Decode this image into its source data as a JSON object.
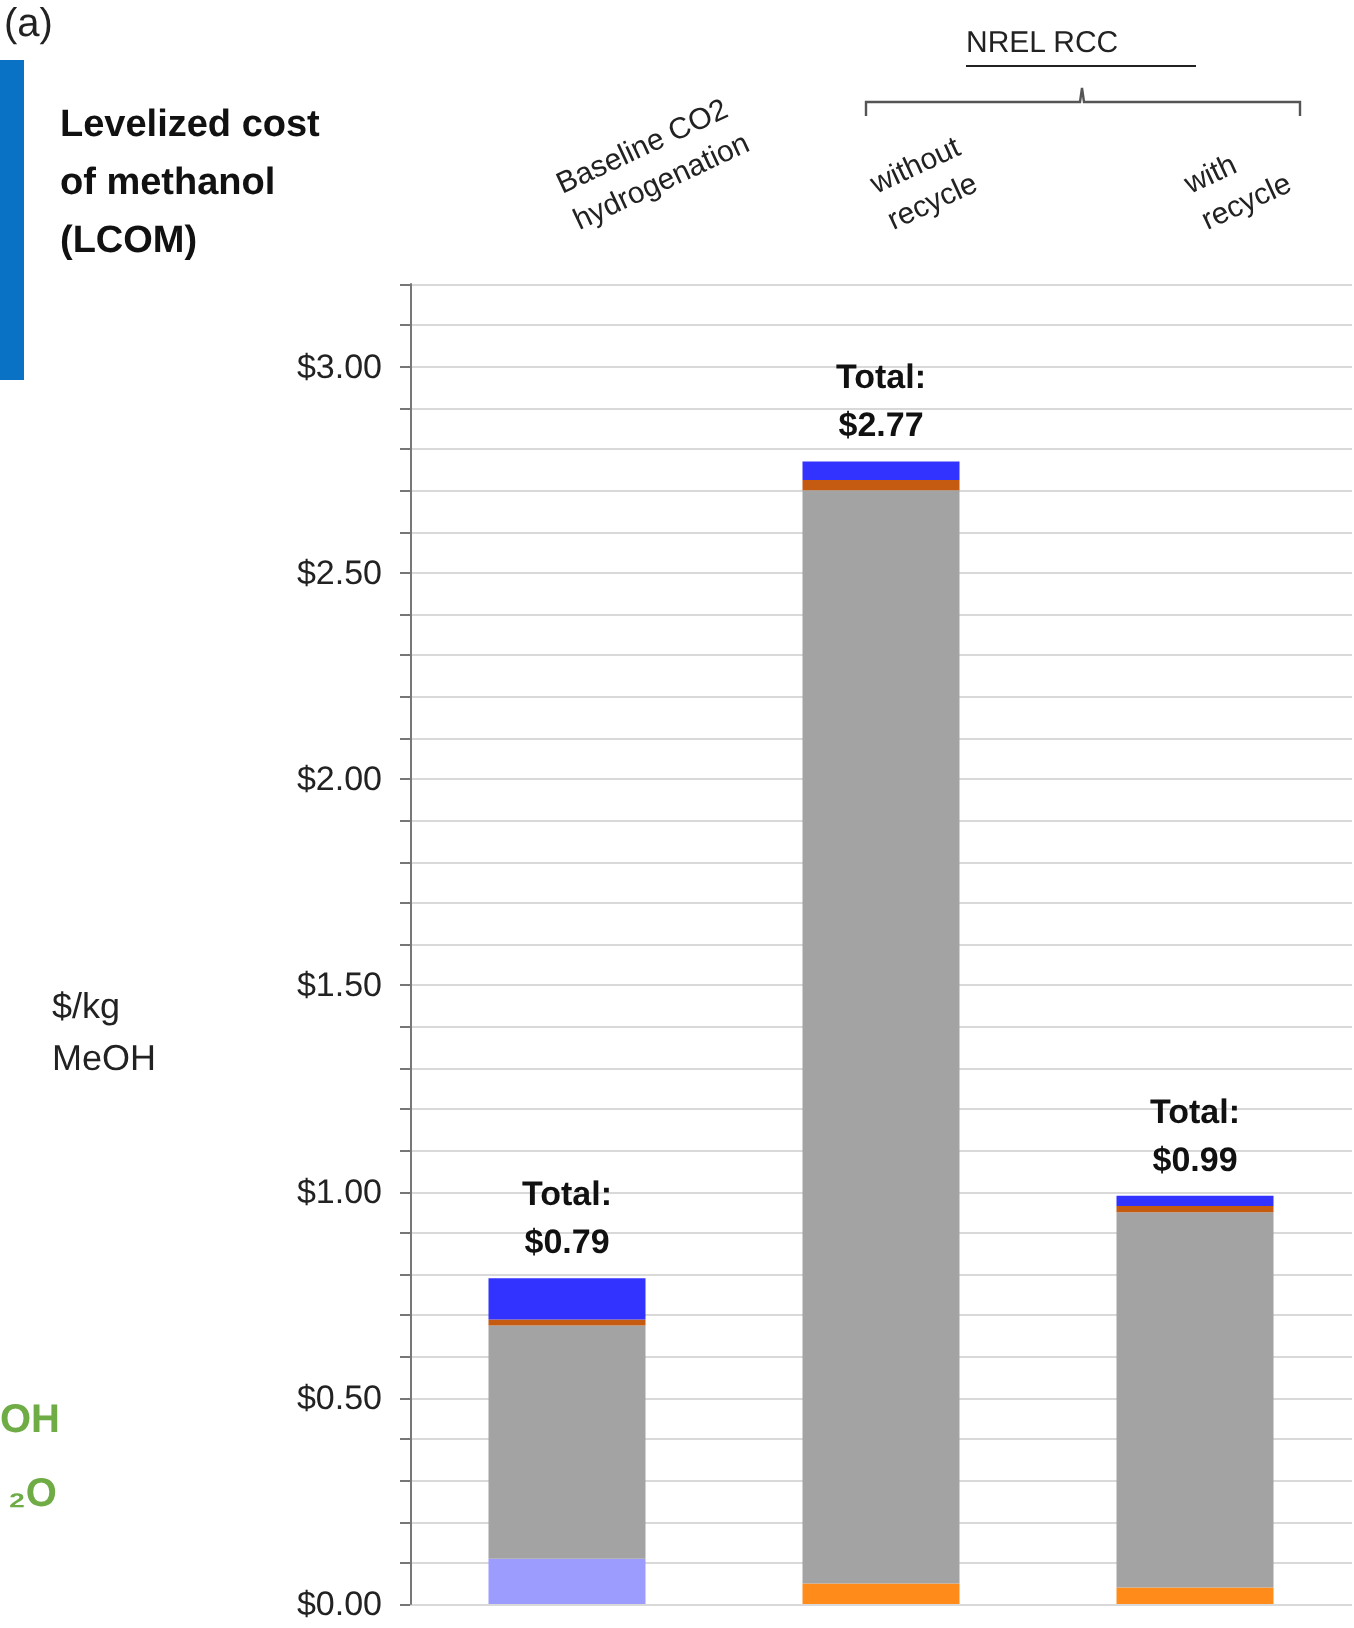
{
  "chart_data": {
    "type": "bar",
    "stacked": true,
    "title": "Levelized cost\nof methanol\n(LCOM)",
    "ylabel": "$/kg\nMeOH",
    "categories": [
      "Baseline CO2\nhydrogenation",
      "without\nrecycle",
      "with\nrecycle"
    ],
    "series": [
      {
        "color": "#9c9cff",
        "values": [
          0.11,
          null,
          null
        ]
      },
      {
        "color": "#ff8c1a",
        "values": [
          null,
          0.05,
          0.04
        ]
      },
      {
        "color": "#a3a3a3",
        "values": [
          0.565,
          2.65,
          0.91
        ]
      },
      {
        "color": "#c55a11",
        "values": [
          0.015,
          0.025,
          0.015
        ]
      },
      {
        "color": "#3333ff",
        "values": [
          0.1,
          0.045,
          0.025
        ]
      }
    ],
    "totals": [
      "Total:\n$0.79",
      "Total:\n$2.77",
      "Total:\n$0.99"
    ],
    "ylim": [
      0,
      3.2
    ],
    "yticks": [
      {
        "value": 0,
        "label": "$0.00"
      },
      {
        "value": 0.1,
        "label": null
      },
      {
        "value": 0.2,
        "label": null
      },
      {
        "value": 0.3,
        "label": null
      },
      {
        "value": 0.4,
        "label": null
      },
      {
        "value": 0.5,
        "label": "$0.50"
      },
      {
        "value": 0.6,
        "label": null
      },
      {
        "value": 0.7,
        "label": null
      },
      {
        "value": 0.8,
        "label": null
      },
      {
        "value": 0.9,
        "label": null
      },
      {
        "value": 1,
        "label": "$1.00"
      },
      {
        "value": 1.1,
        "label": null
      },
      {
        "value": 1.2,
        "label": null
      },
      {
        "value": 1.3,
        "label": null
      },
      {
        "value": 1.4,
        "label": null
      },
      {
        "value": 1.5,
        "label": "$1.50"
      },
      {
        "value": 1.6,
        "label": null
      },
      {
        "value": 1.7,
        "label": null
      },
      {
        "value": 1.8,
        "label": null
      },
      {
        "value": 1.9,
        "label": null
      },
      {
        "value": 2,
        "label": "$2.00"
      },
      {
        "value": 2.1,
        "label": null
      },
      {
        "value": 2.2,
        "label": null
      },
      {
        "value": 2.3,
        "label": null
      },
      {
        "value": 2.4,
        "label": null
      },
      {
        "value": 2.5,
        "label": "$2.50"
      },
      {
        "value": 2.6,
        "label": null
      },
      {
        "value": 2.7,
        "label": null
      },
      {
        "value": 2.8,
        "label": null
      },
      {
        "value": 2.9,
        "label": null
      },
      {
        "value": 3,
        "label": "$3.00"
      },
      {
        "value": 3.1,
        "label": null
      },
      {
        "value": 3.2,
        "label": null
      }
    ],
    "grid": "y",
    "annotations": [
      "(a)",
      "NREL RCC",
      "OH",
      "₂O"
    ]
  }
}
